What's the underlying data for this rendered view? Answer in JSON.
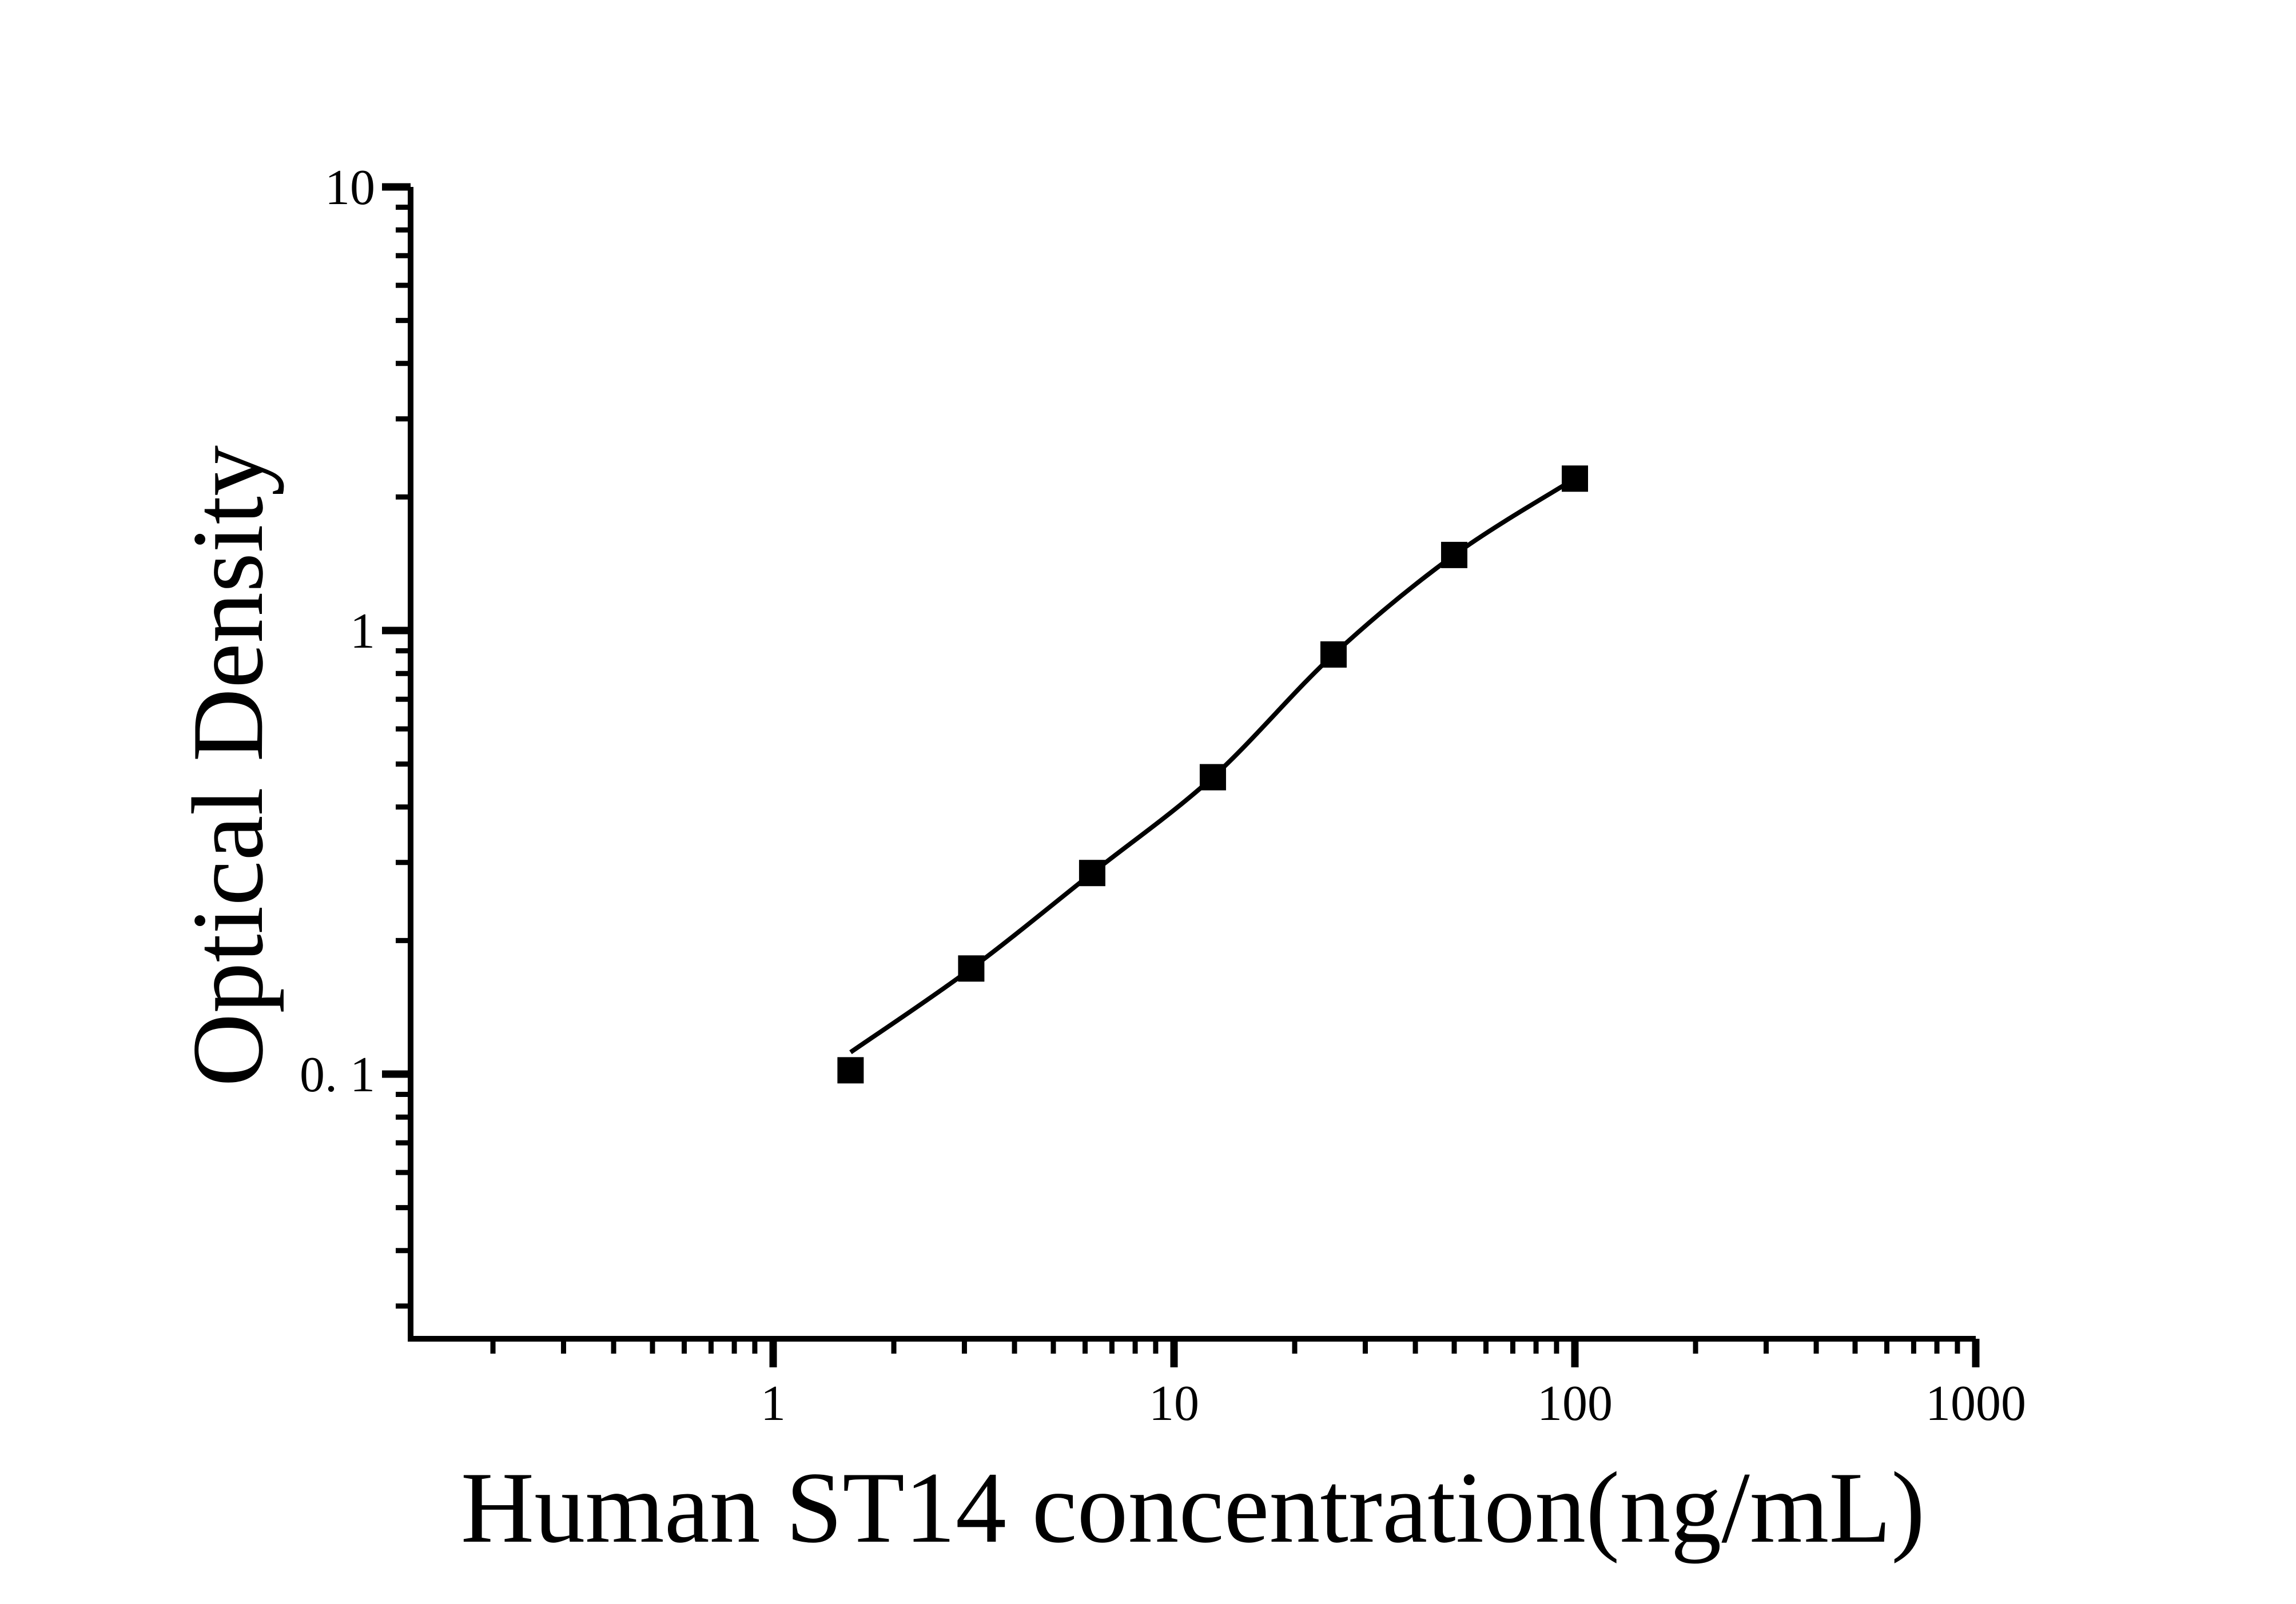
{
  "figure": {
    "background_color": "#ffffff",
    "foreground_color": "#000000"
  },
  "chart_data": {
    "type": "scatter",
    "title": "",
    "xlabel": "Human ST14 concentration(ng/mL)",
    "ylabel": "Optical Density",
    "x_scale": "log",
    "y_scale": "log",
    "x_range": [
      0.123,
      1000
    ],
    "y_range": [
      0.0254,
      10
    ],
    "grid": false,
    "legend": null,
    "x_major_ticks": [
      1,
      10,
      100,
      1000
    ],
    "x_major_tick_labels": [
      "1",
      "10",
      "100",
      "1000"
    ],
    "x_minor_ticks": [
      0.2,
      0.3,
      0.4,
      0.5,
      0.6,
      0.7,
      0.8,
      0.9,
      2,
      3,
      4,
      5,
      6,
      7,
      8,
      9,
      20,
      30,
      40,
      50,
      60,
      70,
      80,
      90,
      200,
      300,
      400,
      500,
      600,
      700,
      800,
      900
    ],
    "y_major_ticks": [
      0.1,
      1,
      10
    ],
    "y_major_tick_labels": [
      "0. 1",
      "1",
      "10"
    ],
    "y_minor_ticks": [
      0.03,
      0.04,
      0.05,
      0.06,
      0.07,
      0.08,
      0.09,
      0.2,
      0.3,
      0.4,
      0.5,
      0.6,
      0.7,
      0.8,
      0.9,
      2,
      3,
      4,
      5,
      6,
      7,
      8,
      9
    ],
    "series": [
      {
        "name": "standard-points",
        "kind": "markers",
        "marker": "filled-square",
        "color": "#000000",
        "points": [
          {
            "x": 1.56,
            "y": 0.102
          },
          {
            "x": 3.12,
            "y": 0.173
          },
          {
            "x": 6.25,
            "y": 0.284
          },
          {
            "x": 12.5,
            "y": 0.467
          },
          {
            "x": 25,
            "y": 0.883
          },
          {
            "x": 50,
            "y": 1.48
          },
          {
            "x": 100,
            "y": 2.2
          }
        ]
      },
      {
        "name": "fitted-curve",
        "kind": "line",
        "color": "#000000",
        "points": [
          {
            "x": 1.56,
            "y": 0.112
          },
          {
            "x": 3.12,
            "y": 0.173
          },
          {
            "x": 6.25,
            "y": 0.284
          },
          {
            "x": 12.5,
            "y": 0.467
          },
          {
            "x": 25,
            "y": 0.883
          },
          {
            "x": 50,
            "y": 1.48
          },
          {
            "x": 100,
            "y": 2.2
          }
        ]
      }
    ]
  }
}
